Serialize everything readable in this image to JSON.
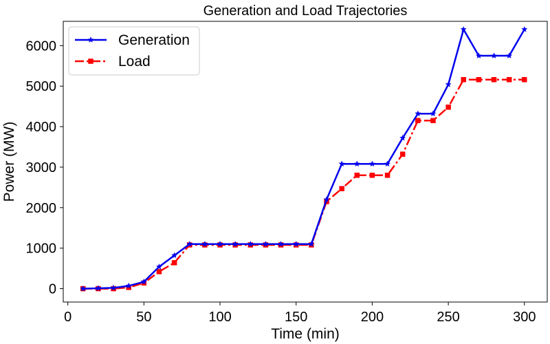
{
  "chart_data": {
    "type": "line",
    "title": "Generation and Load Trajectories",
    "xlabel": "Time (min)",
    "ylabel": "Power (MW)",
    "xlim": [
      -3,
      315
    ],
    "ylim": [
      -330,
      6600
    ],
    "xticks": [
      0,
      50,
      100,
      150,
      200,
      250,
      300
    ],
    "yticks": [
      0,
      1000,
      2000,
      3000,
      4000,
      5000,
      6000
    ],
    "grid": false,
    "legend_position": "top-left",
    "x": [
      10,
      20,
      30,
      40,
      50,
      60,
      70,
      80,
      90,
      100,
      110,
      120,
      130,
      140,
      150,
      160,
      170,
      180,
      190,
      200,
      210,
      220,
      230,
      240,
      250,
      260,
      270,
      280,
      290,
      300
    ],
    "series": [
      {
        "name": "Generation",
        "color": "#0000ee",
        "line_style": "solid",
        "marker": "star",
        "values": [
          0,
          10,
          20,
          70,
          170,
          540,
          820,
          1100,
          1100,
          1100,
          1100,
          1100,
          1100,
          1100,
          1100,
          1100,
          2200,
          3080,
          3080,
          3080,
          3080,
          3720,
          4320,
          4320,
          5040,
          6400,
          5750,
          5750,
          5750,
          6400
        ]
      },
      {
        "name": "Load",
        "color": "#ff0000",
        "line_style": "dashdot",
        "marker": "square",
        "values": [
          0,
          0,
          0,
          30,
          140,
          420,
          640,
          1080,
          1080,
          1080,
          1080,
          1080,
          1080,
          1080,
          1080,
          1080,
          2150,
          2470,
          2800,
          2800,
          2800,
          3320,
          4150,
          4150,
          4480,
          5160,
          5160,
          5160,
          5160,
          5160
        ]
      }
    ]
  }
}
